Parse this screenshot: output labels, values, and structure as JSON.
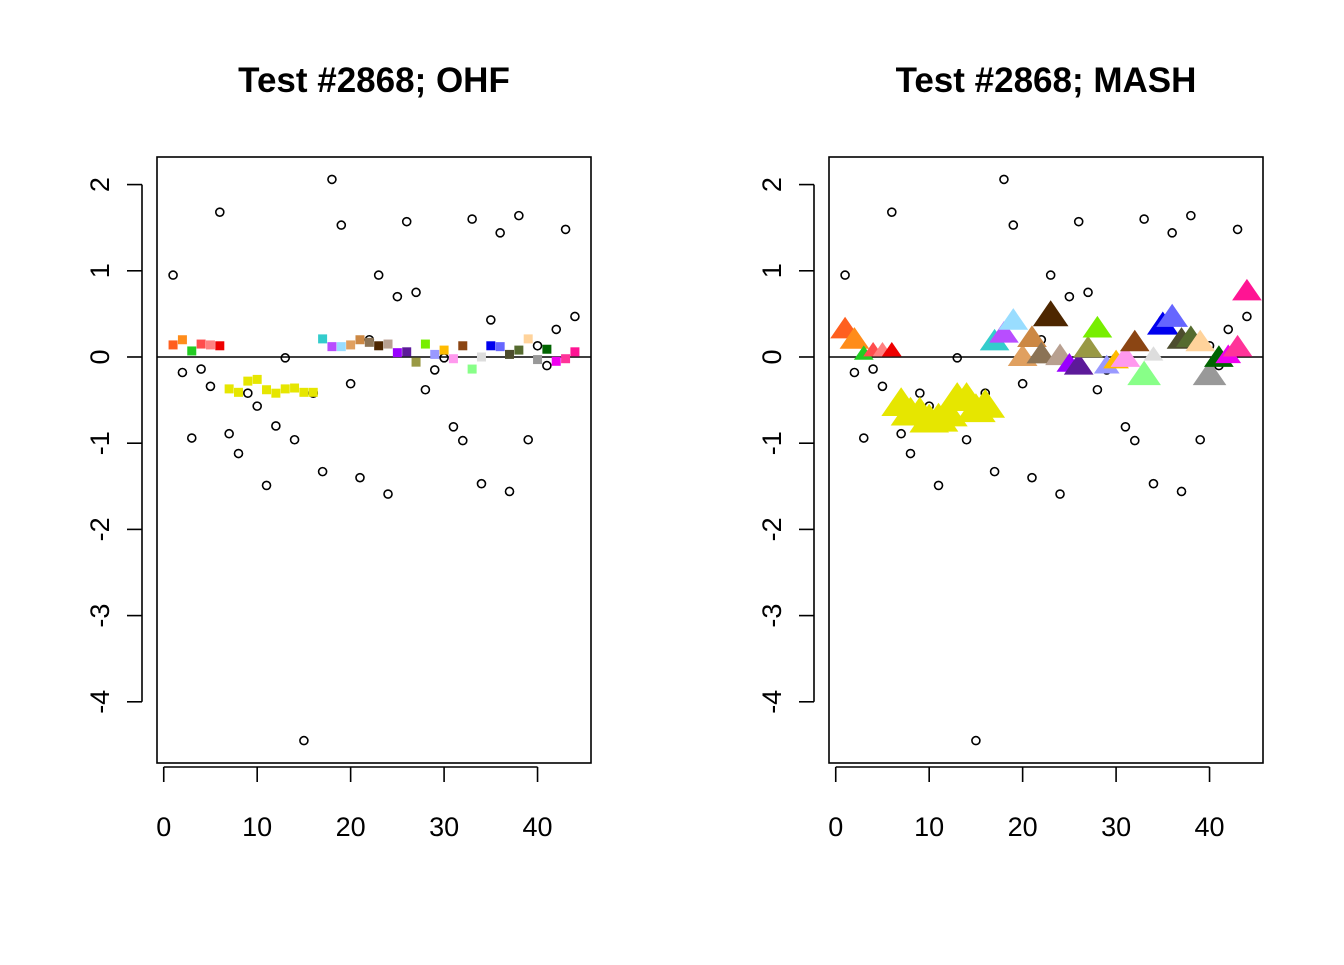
{
  "chart_data": [
    {
      "type": "scatter",
      "title": "Test #2868; OHF",
      "x": [
        1,
        2,
        3,
        4,
        5,
        6,
        7,
        8,
        9,
        10,
        11,
        12,
        13,
        14,
        15,
        16,
        17,
        18,
        19,
        20,
        21,
        22,
        23,
        24,
        25,
        26,
        27,
        28,
        29,
        30,
        31,
        32,
        33,
        34,
        35,
        36,
        37,
        38,
        39,
        40,
        41,
        42,
        43,
        44
      ],
      "xlim": [
        -0.72,
        45.72
      ],
      "ylim": [
        -4.71,
        2.32
      ],
      "xticks": [
        0,
        10,
        20,
        30,
        40
      ],
      "yticks": [
        -4,
        -3,
        -2,
        -1,
        0,
        1,
        2
      ],
      "hline": 0,
      "series": [
        {
          "marker": "circle",
          "color": "#000000",
          "values": [
            0.95,
            -0.18,
            -0.94,
            -0.14,
            -0.34,
            1.68,
            -0.89,
            -1.12,
            -0.42,
            -0.57,
            -1.49,
            -0.8,
            -0.01,
            -0.96,
            -4.45,
            -0.42,
            -1.33,
            2.06,
            1.53,
            -0.31,
            -1.4,
            0.2,
            0.95,
            -1.59,
            0.7,
            1.57,
            0.75,
            -0.38,
            -0.15,
            -0.01,
            -0.81,
            -0.97,
            1.6,
            -1.47,
            0.43,
            1.44,
            -1.56,
            1.64,
            -0.96,
            0.13,
            -0.1,
            0.32,
            1.48,
            0.47
          ]
        },
        {
          "marker": "square",
          "colors": [
            "#ff5f1f",
            "#ff8c1a",
            "#22cc22",
            "#ff4d4d",
            "#ff8080",
            "#ee0000",
            "#e6e600",
            "#e6e600",
            "#e6e600",
            "#e6e600",
            "#e6e600",
            "#e6e600",
            "#e6e600",
            "#e6e600",
            "#e6e600",
            "#e6e600",
            "#33cccc",
            "#b84dff",
            "#99ddff",
            "#e0a060",
            "#cc8844",
            "#8b7355",
            "#4d2600",
            "#b8a090",
            "#9900ff",
            "#5c1a99",
            "#999944",
            "#77ee00",
            "#9999ff",
            "#ffbb00",
            "#ff99ee",
            "#8b4513",
            "#88ff88",
            "#dddddd",
            "#0000ee",
            "#6666ff",
            "#4d4d2e",
            "#556b2f",
            "#ffd39b",
            "#999999",
            "#006400",
            "#ee00ee",
            "#ff3399",
            "#ff1493"
          ],
          "values": [
            0.14,
            0.2,
            0.07,
            0.15,
            0.14,
            0.13,
            -0.37,
            -0.41,
            -0.28,
            -0.26,
            -0.38,
            -0.42,
            -0.37,
            -0.36,
            -0.41,
            -0.41,
            0.21,
            0.12,
            0.12,
            0.14,
            0.2,
            0.17,
            0.13,
            0.15,
            0.05,
            0.06,
            -0.06,
            0.15,
            0.03,
            0.08,
            -0.02,
            0.13,
            -0.14,
            0.0,
            0.13,
            0.12,
            0.03,
            0.08,
            0.21,
            -0.03,
            0.09,
            -0.05,
            -0.02,
            0.06
          ]
        }
      ]
    },
    {
      "type": "scatter",
      "title": "Test #2868; MASH",
      "x": [
        1,
        2,
        3,
        4,
        5,
        6,
        7,
        8,
        9,
        10,
        11,
        12,
        13,
        14,
        15,
        16,
        17,
        18,
        19,
        20,
        21,
        22,
        23,
        24,
        25,
        26,
        27,
        28,
        29,
        30,
        31,
        32,
        33,
        34,
        35,
        36,
        37,
        38,
        39,
        40,
        41,
        42,
        43,
        44
      ],
      "xlim": [
        -0.72,
        45.72
      ],
      "ylim": [
        -4.71,
        2.32
      ],
      "xticks": [
        0,
        10,
        20,
        30,
        40
      ],
      "yticks": [
        -4,
        -3,
        -2,
        -1,
        0,
        1,
        2
      ],
      "hline": 0,
      "series": [
        {
          "marker": "circle",
          "color": "#000000",
          "values": [
            0.95,
            -0.18,
            -0.94,
            -0.14,
            -0.34,
            1.68,
            -0.89,
            -1.12,
            -0.42,
            -0.57,
            -1.49,
            -0.8,
            -0.01,
            -0.96,
            -4.45,
            -0.42,
            -1.33,
            2.06,
            1.53,
            -0.31,
            -1.4,
            0.2,
            0.95,
            -1.59,
            0.7,
            1.57,
            0.75,
            -0.38,
            -0.15,
            -0.01,
            -0.81,
            -0.97,
            1.6,
            -1.47,
            0.43,
            1.44,
            -1.56,
            1.64,
            -0.96,
            0.13,
            -0.1,
            0.32,
            1.48,
            0.47
          ]
        },
        {
          "marker": "triangle",
          "colors": [
            "#ff5f1f",
            "#ff8c1a",
            "#22cc22",
            "#ff4d4d",
            "#ff8080",
            "#ee0000",
            "#e6e600",
            "#e6e600",
            "#e6e600",
            "#e6e600",
            "#e6e600",
            "#e6e600",
            "#e6e600",
            "#e6e600",
            "#e6e600",
            "#e6e600",
            "#33cccc",
            "#b84dff",
            "#99ddff",
            "#e0a060",
            "#cc8844",
            "#8b7355",
            "#4d2600",
            "#b8a090",
            "#9900ff",
            "#5c1a99",
            "#999944",
            "#77ee00",
            "#9999ff",
            "#ffbb00",
            "#ff99ee",
            "#8b4513",
            "#88ff88",
            "#dddddd",
            "#0000ee",
            "#6666ff",
            "#4d4d2e",
            "#556b2f",
            "#ffd39b",
            "#999999",
            "#006400",
            "#ee00ee",
            "#ff3399",
            "#ff1493"
          ],
          "sizes": [
            1.5,
            1.5,
            1,
            1,
            1,
            1,
            2,
            2,
            2,
            2,
            2,
            2,
            2,
            2,
            2,
            2,
            1.5,
            1.5,
            1.5,
            1.5,
            1.5,
            1.5,
            1.8,
            1.5,
            1.3,
            1.5,
            1.5,
            1.5,
            1.3,
            1.3,
            1.5,
            1.5,
            1.7,
            1,
            1.6,
            1.6,
            1.5,
            1.5,
            1.5,
            1.7,
            1.5,
            1.3,
            1.5,
            1.5
          ],
          "values": [
            0.31,
            0.19,
            0.03,
            0.07,
            0.07,
            0.07,
            -0.56,
            -0.67,
            -0.67,
            -0.75,
            -0.74,
            -0.68,
            -0.5,
            -0.5,
            -0.63,
            -0.58,
            0.17,
            0.26,
            0.41,
            -0.01,
            0.21,
            0.02,
            0.47,
            0.0,
            -0.09,
            -0.11,
            0.09,
            0.32,
            -0.11,
            -0.05,
            -0.02,
            0.16,
            -0.22,
            0.02,
            0.36,
            0.45,
            0.19,
            0.21,
            0.16,
            -0.22,
            -0.02,
            0.01,
            0.1,
            0.75
          ]
        }
      ]
    }
  ]
}
